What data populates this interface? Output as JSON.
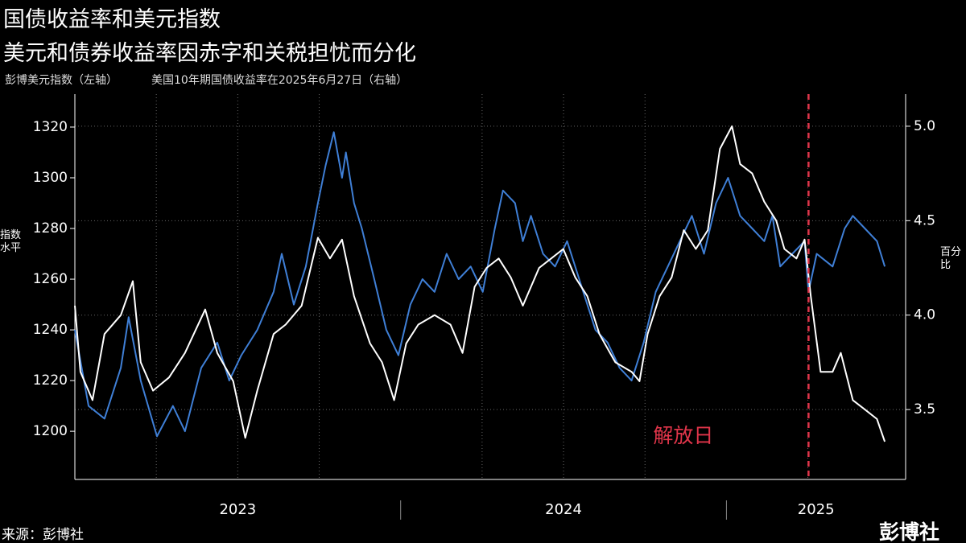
{
  "chart_data": {
    "type": "line",
    "title": "国债收益率和美元指数",
    "subtitle": "美元和债券收益率因赤字和关税担忧而分化",
    "y_label": "指数水平",
    "y2_label": "百分比",
    "source": "来源：彭博社",
    "logo": "彭博社",
    "xlim": [
      2023,
      2025.55
    ],
    "xticks": [
      2023,
      2024,
      2025
    ],
    "xgrid": [
      2023.25,
      2023.5,
      2023.75,
      2024.25,
      2024.5,
      2024.75,
      2025.25
    ],
    "ylim": [
      1181,
      1333
    ],
    "yticks": [
      1200,
      1220,
      1240,
      1260,
      1280,
      1300,
      1320
    ],
    "y2lim": [
      3.13,
      5.17
    ],
    "y2ticks": [
      3.5,
      {
        "value": 4,
        "label": "4.0"
      },
      4.5,
      {
        "value": 5,
        "label": "5.0"
      }
    ],
    "annotation": {
      "label": "解放日",
      "x": 2025.252,
      "color": "#e0354a"
    },
    "series": [
      {
        "name": "彭博美元指数（左轴）",
        "color": "#3f7fd6",
        "x": [
          2023.0,
          2023.042,
          2023.091,
          2023.141,
          2023.165,
          2023.202,
          2023.252,
          2023.301,
          2023.338,
          2023.388,
          2023.437,
          2023.474,
          2023.511,
          2023.56,
          2023.61,
          2023.635,
          2023.672,
          2023.709,
          2023.746,
          2023.77,
          2023.795,
          2023.82,
          2023.832,
          2023.857,
          2023.881,
          2023.919,
          2023.956,
          2023.993,
          2024.03,
          2024.067,
          2024.104,
          2024.141,
          2024.178,
          2024.215,
          2024.252,
          2024.289,
          2024.314,
          2024.351,
          2024.375,
          2024.4,
          2024.437,
          2024.474,
          2024.511,
          2024.548,
          2024.598,
          2024.635,
          2024.672,
          2024.709,
          2024.746,
          2024.783,
          2024.82,
          2024.857,
          2024.894,
          2024.931,
          2024.968,
          2025.005,
          2025.042,
          2025.079,
          2025.116,
          2025.141,
          2025.165,
          2025.202,
          2025.24,
          2025.252,
          2025.277,
          2025.326,
          2025.363,
          2025.388,
          2025.425,
          2025.462,
          2025.486
        ],
        "values": [
          1240,
          1210,
          1205,
          1225,
          1245,
          1220,
          1198,
          1210,
          1200,
          1225,
          1235,
          1220,
          1230,
          1240,
          1255,
          1270,
          1250,
          1265,
          1290,
          1305,
          1318,
          1300,
          1310,
          1290,
          1280,
          1260,
          1240,
          1230,
          1250,
          1260,
          1255,
          1270,
          1260,
          1265,
          1255,
          1280,
          1295,
          1290,
          1275,
          1285,
          1270,
          1265,
          1275,
          1260,
          1240,
          1235,
          1225,
          1220,
          1235,
          1255,
          1265,
          1275,
          1285,
          1270,
          1290,
          1300,
          1285,
          1280,
          1275,
          1285,
          1265,
          1270,
          1275,
          1255,
          1270,
          1265,
          1280,
          1285,
          1280,
          1275,
          1265
        ]
      },
      {
        "name": "美国10年期国债收益率在2025年6月27日（右轴）",
        "color": "#ffffff",
        "axis": "y2",
        "x": [
          2023.0,
          2023.017,
          2023.054,
          2023.091,
          2023.141,
          2023.178,
          2023.202,
          2023.24,
          2023.289,
          2023.338,
          2023.4,
          2023.437,
          2023.486,
          2023.523,
          2023.56,
          2023.61,
          2023.647,
          2023.696,
          2023.746,
          2023.783,
          2023.82,
          2023.857,
          2023.906,
          2023.943,
          2023.98,
          2024.017,
          2024.054,
          2024.104,
          2024.153,
          2024.19,
          2024.227,
          2024.264,
          2024.301,
          2024.338,
          2024.375,
          2024.425,
          2024.462,
          2024.499,
          2024.536,
          2024.573,
          2024.61,
          2024.659,
          2024.709,
          2024.733,
          2024.758,
          2024.795,
          2024.832,
          2024.869,
          2024.906,
          2024.943,
          2024.98,
          2025.017,
          2025.042,
          2025.079,
          2025.116,
          2025.153,
          2025.178,
          2025.215,
          2025.24,
          2025.259,
          2025.289,
          2025.326,
          2025.351,
          2025.388,
          2025.425,
          2025.462,
          2025.486
        ],
        "values": [
          4.05,
          3.7,
          3.55,
          3.9,
          4.0,
          4.18,
          3.75,
          3.6,
          3.67,
          3.8,
          4.03,
          3.8,
          3.65,
          3.35,
          3.6,
          3.9,
          3.95,
          4.05,
          4.41,
          4.3,
          4.4,
          4.1,
          3.85,
          3.75,
          3.55,
          3.85,
          3.95,
          4.0,
          3.95,
          3.8,
          4.15,
          4.25,
          4.3,
          4.2,
          4.05,
          4.25,
          4.3,
          4.35,
          4.2,
          4.1,
          3.9,
          3.75,
          3.7,
          3.65,
          3.9,
          4.1,
          4.2,
          4.45,
          4.35,
          4.45,
          4.88,
          5.0,
          4.8,
          4.75,
          4.6,
          4.5,
          4.35,
          4.3,
          4.4,
          4.1,
          3.7,
          3.7,
          3.8,
          3.55,
          3.5,
          3.45,
          3.33
        ]
      }
    ]
  }
}
